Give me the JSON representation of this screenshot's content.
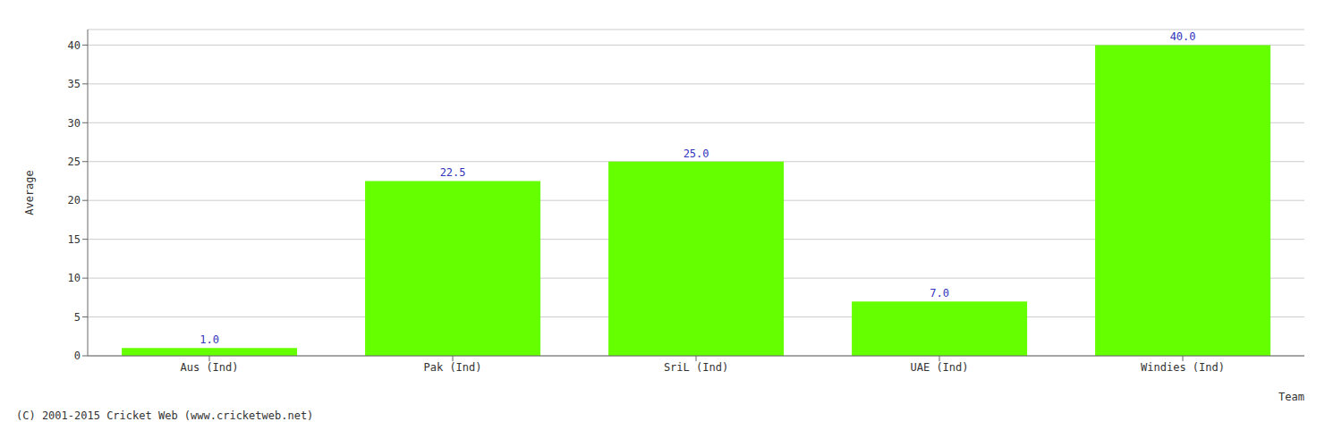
{
  "chart_data": {
    "type": "bar",
    "categories": [
      "Aus (Ind)",
      "Pak (Ind)",
      "SriL (Ind)",
      "UAE (Ind)",
      "Windies (Ind)"
    ],
    "values": [
      1.0,
      22.5,
      25.0,
      7.0,
      40.0
    ],
    "value_labels": [
      "1.0",
      "22.5",
      "25.0",
      "7.0",
      "40.0"
    ],
    "data_labels": true,
    "color": "#66ff00",
    "xlabel": "Team",
    "ylabel": "Average",
    "ylim": [
      0,
      42
    ],
    "yticks": [
      0,
      5,
      10,
      15,
      20,
      25,
      30,
      35,
      40
    ],
    "grid": true,
    "annotations": [
      "(C) 2001-2015 Cricket Web (www.cricketweb.net)"
    ]
  }
}
